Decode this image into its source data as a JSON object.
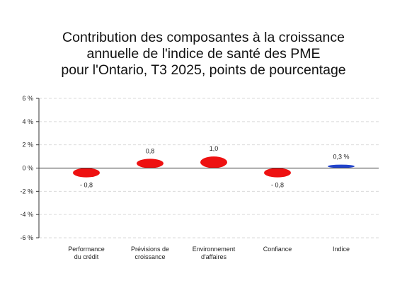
{
  "chart_data": {
    "type": "bar",
    "title_lines": [
      "Contribution des composantes à la croissance",
      "annuelle de l'indice de santé des PME",
      "pour l'Ontario, T3 2025, points de pourcentage"
    ],
    "categories": [
      [
        "Performance",
        "du crédit"
      ],
      [
        "Prévisions de",
        "croissance"
      ],
      [
        "Environnement",
        "d'affaires"
      ],
      [
        "Confiance"
      ],
      [
        "Indice"
      ]
    ],
    "values": [
      -0.8,
      0.8,
      1.0,
      -0.8,
      0.3
    ],
    "data_labels": [
      "- 0,8",
      "0,8",
      "1,0",
      "- 0,8",
      "0,3 %"
    ],
    "y_ticks": [
      6,
      4,
      2,
      0,
      -2,
      -4,
      -6
    ],
    "y_tick_labels": [
      "6 %",
      "4 %",
      "2 %",
      "0 %",
      "-2 %",
      "-4 %",
      "-6 %"
    ],
    "ylim": [
      -6,
      6
    ],
    "grid": true,
    "colors": {
      "components": "#ee1111",
      "index": "#2244cc",
      "grid": "#d9d9d9",
      "axis": "#333333"
    }
  }
}
